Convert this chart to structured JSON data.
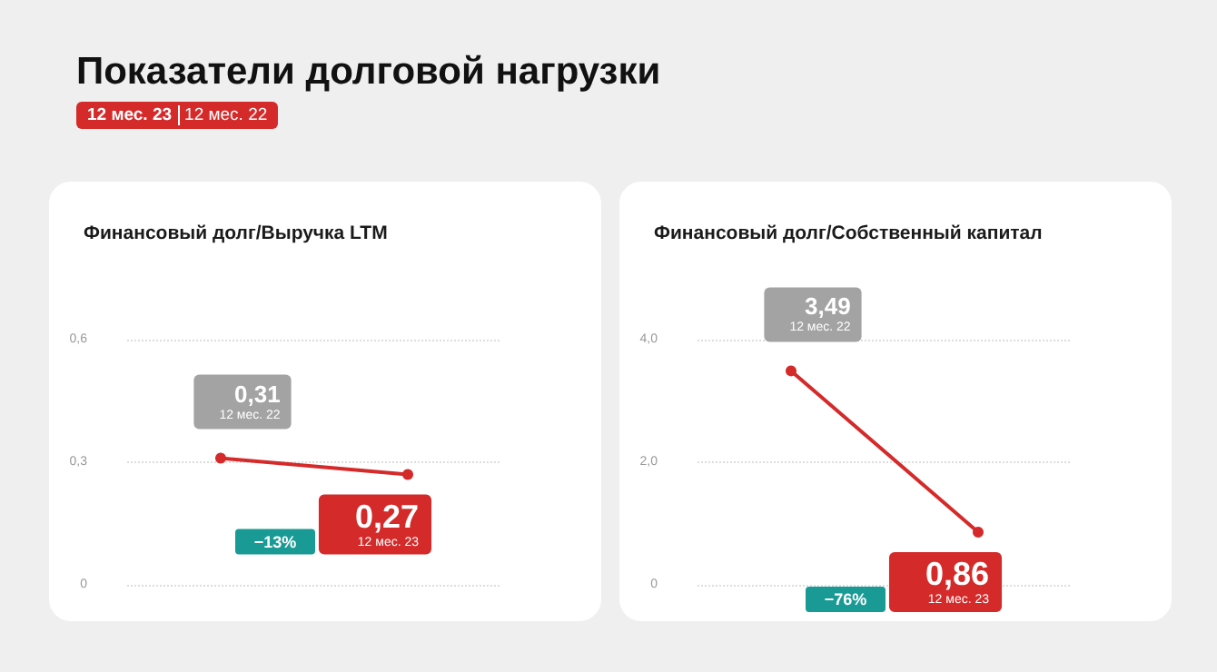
{
  "chart_data": [
    {
      "type": "other",
      "title": "Показатели долговой нагрузки",
      "annotations": [
        "12 мес. 23",
        "12 мес. 22"
      ]
    },
    {
      "type": "line",
      "title": "Финансовый долг/Выручка LTM",
      "categories": [
        null,
        null
      ],
      "series": [
        {
          "color": "#d42a2a",
          "values": [
            0.31,
            0.27
          ]
        }
      ],
      "value_labels": [
        "0,31",
        "0,27"
      ],
      "annotations": [
        "12 мес. 22",
        "12 мес. 23",
        "−13%"
      ],
      "ylim": [
        0,
        0.6
      ],
      "yticks": [
        0,
        {
          "value": 0.3,
          "label": "0,3"
        },
        {
          "value": 0.6,
          "label": "0,6"
        }
      ],
      "grid": "y",
      "marker": "circle",
      "line_style": "solid",
      "tick_labels": "y"
    },
    {
      "type": "line",
      "title": "Финансовый долг/Собственный капитал",
      "categories": [
        null,
        null
      ],
      "series": [
        {
          "color": "#d42a2a",
          "values": [
            3.49,
            0.86
          ]
        }
      ],
      "value_labels": [
        "3,49",
        "0,86"
      ],
      "annotations": [
        "12 мес. 22",
        "12 мес. 23",
        "−76%"
      ],
      "ylim": [
        0,
        4
      ],
      "yticks": [
        0,
        {
          "value": 2,
          "label": "2,0"
        },
        {
          "value": 4,
          "label": "4,0"
        }
      ],
      "grid": "y",
      "marker": "circle",
      "line_style": "solid",
      "tick_labels": "y"
    }
  ]
}
